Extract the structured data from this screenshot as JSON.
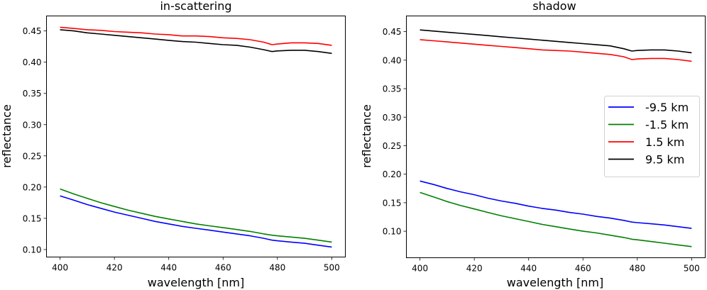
{
  "chart_data": [
    {
      "type": "line",
      "title": "in-scattering",
      "xlabel": "wavelength [nm]",
      "ylabel": "reflectance",
      "xlim": [
        395,
        505
      ],
      "ylim": [
        0.088,
        0.474
      ],
      "xticks": [
        400,
        420,
        440,
        460,
        480,
        500
      ],
      "xtick_labels": [
        "400",
        "420",
        "440",
        "460",
        "480",
        "500"
      ],
      "yticks": [
        0.1,
        0.15,
        0.2,
        0.25,
        0.3,
        0.35,
        0.4,
        0.45
      ],
      "ytick_labels": [
        "0.10",
        "0.15",
        "0.20",
        "0.25",
        "0.30",
        "0.35",
        "0.40",
        "0.45"
      ],
      "grid": false,
      "legend": null,
      "x": [
        400,
        405,
        410,
        415,
        420,
        425,
        430,
        435,
        440,
        445,
        450,
        455,
        460,
        465,
        470,
        475,
        478,
        480,
        485,
        490,
        495,
        500
      ],
      "series": [
        {
          "name": "-9.5 km",
          "color": "#0000ff",
          "values": [
            0.186,
            0.179,
            0.172,
            0.166,
            0.16,
            0.155,
            0.15,
            0.145,
            0.141,
            0.137,
            0.134,
            0.131,
            0.128,
            0.125,
            0.122,
            0.118,
            0.115,
            0.114,
            0.112,
            0.11,
            0.107,
            0.104
          ]
        },
        {
          "name": "-1.5 km",
          "color": "#008000",
          "values": [
            0.197,
            0.189,
            0.182,
            0.175,
            0.169,
            0.163,
            0.158,
            0.153,
            0.149,
            0.145,
            0.141,
            0.138,
            0.135,
            0.132,
            0.129,
            0.125,
            0.123,
            0.122,
            0.12,
            0.118,
            0.115,
            0.112
          ]
        },
        {
          "name": "1.5 km",
          "color": "#ff0000",
          "values": [
            0.456,
            0.454,
            0.452,
            0.451,
            0.449,
            0.448,
            0.447,
            0.445,
            0.444,
            0.442,
            0.442,
            0.441,
            0.439,
            0.438,
            0.436,
            0.432,
            0.428,
            0.429,
            0.431,
            0.431,
            0.43,
            0.427
          ]
        },
        {
          "name": "9.5 km",
          "color": "#000000",
          "values": [
            0.452,
            0.45,
            0.447,
            0.445,
            0.443,
            0.441,
            0.439,
            0.437,
            0.435,
            0.433,
            0.432,
            0.43,
            0.428,
            0.427,
            0.424,
            0.42,
            0.417,
            0.418,
            0.419,
            0.419,
            0.417,
            0.414
          ]
        }
      ]
    },
    {
      "type": "line",
      "title": "shadow",
      "xlabel": "wavelength [nm]",
      "ylabel": "reflectance",
      "xlim": [
        395,
        505
      ],
      "ylim": [
        0.0535,
        0.4775
      ],
      "xticks": [
        400,
        420,
        440,
        460,
        480,
        500
      ],
      "xtick_labels": [
        "400",
        "420",
        "440",
        "460",
        "480",
        "500"
      ],
      "yticks": [
        0.1,
        0.15,
        0.2,
        0.25,
        0.3,
        0.35,
        0.4,
        0.45
      ],
      "ytick_labels": [
        "0.10",
        "0.15",
        "0.20",
        "0.25",
        "0.30",
        "0.35",
        "0.40",
        "0.45"
      ],
      "grid": false,
      "legend": "center-right",
      "x": [
        400,
        405,
        410,
        415,
        420,
        425,
        430,
        435,
        440,
        445,
        450,
        455,
        460,
        465,
        470,
        475,
        478,
        480,
        485,
        490,
        495,
        500
      ],
      "series": [
        {
          "name": "-9.5 km",
          "color": "#0000ff",
          "values": [
            0.188,
            0.182,
            0.175,
            0.169,
            0.164,
            0.158,
            0.153,
            0.149,
            0.144,
            0.14,
            0.137,
            0.133,
            0.13,
            0.126,
            0.123,
            0.119,
            0.116,
            0.115,
            0.113,
            0.111,
            0.108,
            0.105
          ]
        },
        {
          "name": "-1.5 km",
          "color": "#008000",
          "values": [
            0.168,
            0.16,
            0.152,
            0.145,
            0.139,
            0.133,
            0.127,
            0.122,
            0.117,
            0.112,
            0.108,
            0.104,
            0.1,
            0.097,
            0.093,
            0.089,
            0.086,
            0.085,
            0.082,
            0.079,
            0.076,
            0.073
          ]
        },
        {
          "name": "1.5 km",
          "color": "#ff0000",
          "values": [
            0.436,
            0.434,
            0.432,
            0.43,
            0.428,
            0.426,
            0.424,
            0.422,
            0.42,
            0.418,
            0.417,
            0.416,
            0.414,
            0.412,
            0.41,
            0.406,
            0.401,
            0.402,
            0.403,
            0.403,
            0.401,
            0.398
          ]
        },
        {
          "name": "9.5 km",
          "color": "#000000",
          "values": [
            0.453,
            0.451,
            0.449,
            0.447,
            0.445,
            0.443,
            0.441,
            0.439,
            0.437,
            0.435,
            0.433,
            0.431,
            0.429,
            0.427,
            0.425,
            0.42,
            0.416,
            0.417,
            0.418,
            0.418,
            0.416,
            0.413
          ]
        }
      ]
    }
  ]
}
